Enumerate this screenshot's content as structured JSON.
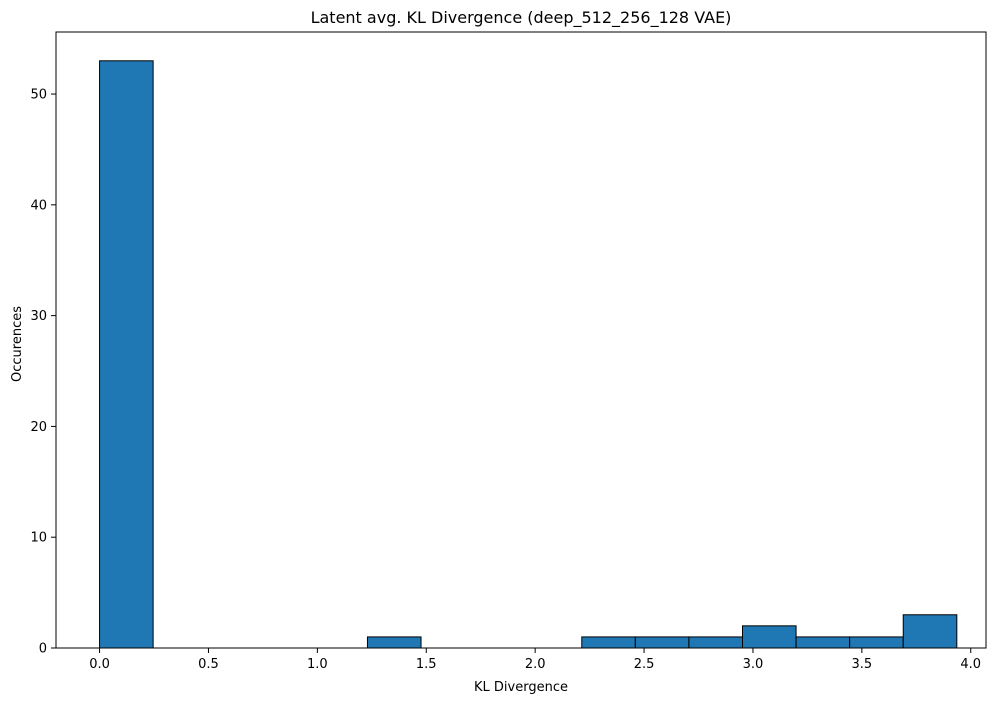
{
  "chart_data": {
    "type": "bar",
    "title": "Latent avg. KL Divergence (deep_512_256_128 VAE)",
    "xlabel": "KL Divergence",
    "ylabel": "Occurences",
    "xlim": [
      -0.2,
      4.07
    ],
    "ylim": [
      0,
      55.6
    ],
    "xticks": [
      0.0,
      0.5,
      1.0,
      1.5,
      2.0,
      2.5,
      3.0,
      3.5,
      4.0
    ],
    "xtick_labels": [
      "0.0",
      "0.5",
      "1.0",
      "1.5",
      "2.0",
      "2.5",
      "3.0",
      "3.5",
      "4.0"
    ],
    "yticks": [
      0,
      10,
      20,
      30,
      40,
      50
    ],
    "ytick_labels": [
      "0",
      "10",
      "20",
      "30",
      "40",
      "50"
    ],
    "bin_edges": [
      0.0,
      0.246,
      0.492,
      0.738,
      0.984,
      1.23,
      1.476,
      1.722,
      1.968,
      2.214,
      2.46,
      2.706,
      2.952,
      3.198,
      3.444,
      3.69,
      3.936
    ],
    "values": [
      53,
      0,
      0,
      0,
      0,
      1,
      0,
      0,
      0,
      1,
      1,
      1,
      2,
      1,
      1,
      3
    ],
    "bar_color": "#1f77b4",
    "edge_color": "#000000",
    "grid": false
  }
}
